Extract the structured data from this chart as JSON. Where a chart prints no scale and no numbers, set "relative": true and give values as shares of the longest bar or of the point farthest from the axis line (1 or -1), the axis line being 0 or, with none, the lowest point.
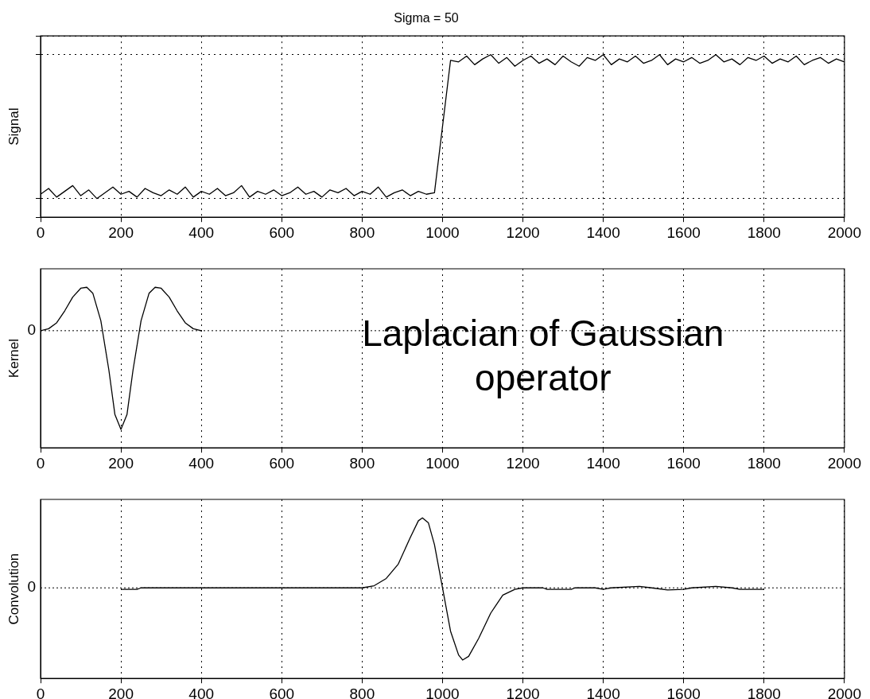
{
  "chart_data": [
    {
      "type": "line",
      "title": "Sigma = 50",
      "ylabel": "Signal",
      "relative": true,
      "tick_labels": "x",
      "grid": true,
      "legend": false,
      "marker": "none",
      "line_style": "solid",
      "color": "#000000",
      "xlim": [
        0,
        2000
      ],
      "xticks": [
        0,
        200,
        400,
        600,
        800,
        1000,
        1200,
        1400,
        1600,
        1800,
        2000
      ],
      "x": [
        0,
        20,
        40,
        60,
        80,
        100,
        120,
        140,
        160,
        180,
        200,
        220,
        240,
        260,
        280,
        300,
        320,
        340,
        360,
        380,
        400,
        420,
        440,
        460,
        480,
        500,
        520,
        540,
        560,
        580,
        600,
        620,
        640,
        660,
        680,
        700,
        720,
        740,
        760,
        780,
        800,
        820,
        840,
        860,
        880,
        900,
        920,
        940,
        960,
        980,
        1020,
        1040,
        1060,
        1080,
        1100,
        1120,
        1140,
        1160,
        1180,
        1200,
        1220,
        1240,
        1260,
        1280,
        1300,
        1320,
        1340,
        1360,
        1380,
        1400,
        1420,
        1440,
        1460,
        1480,
        1500,
        1520,
        1540,
        1560,
        1580,
        1600,
        1620,
        1640,
        1660,
        1680,
        1700,
        1720,
        1740,
        1760,
        1780,
        1800,
        1820,
        1840,
        1860,
        1880,
        1900,
        1920,
        1940,
        1960,
        1980,
        2000
      ],
      "values": [
        0.03,
        0.07,
        0.01,
        0.05,
        0.09,
        0.02,
        0.06,
        0.0,
        0.04,
        0.08,
        0.03,
        0.05,
        0.01,
        0.07,
        0.04,
        0.02,
        0.06,
        0.03,
        0.08,
        0.01,
        0.05,
        0.03,
        0.07,
        0.02,
        0.04,
        0.09,
        0.01,
        0.05,
        0.03,
        0.06,
        0.02,
        0.04,
        0.08,
        0.03,
        0.05,
        0.01,
        0.06,
        0.04,
        0.07,
        0.02,
        0.05,
        0.03,
        0.08,
        0.01,
        0.04,
        0.06,
        0.02,
        0.05,
        0.03,
        0.04,
        0.96,
        0.95,
        0.99,
        0.93,
        0.97,
        1.0,
        0.94,
        0.98,
        0.92,
        0.96,
        0.99,
        0.94,
        0.97,
        0.93,
        0.99,
        0.95,
        0.92,
        0.98,
        0.96,
        1.0,
        0.93,
        0.97,
        0.95,
        0.99,
        0.94,
        0.96,
        1.0,
        0.93,
        0.97,
        0.95,
        0.98,
        0.94,
        0.96,
        1.0,
        0.95,
        0.97,
        0.93,
        0.98,
        0.96,
        0.99,
        0.94,
        0.97,
        0.95,
        0.99,
        0.93,
        0.96,
        0.98,
        0.94,
        0.97,
        0.95
      ]
    },
    {
      "type": "line",
      "ylabel": "Kernel",
      "relative": true,
      "grid": true,
      "legend": false,
      "marker": "none",
      "line_style": "solid",
      "color": "#000000",
      "xlim": [
        0,
        2000
      ],
      "xticks": [
        0,
        200,
        400,
        600,
        800,
        1000,
        1200,
        1400,
        1600,
        1800,
        2000
      ],
      "ref_lines": [
        {
          "axis": "y",
          "value": 0,
          "label": "0"
        }
      ],
      "annotations": [
        "Laplacian of Gaussian operator"
      ],
      "x": [
        0,
        20,
        40,
        60,
        80,
        100,
        115,
        130,
        150,
        170,
        185,
        200,
        215,
        230,
        250,
        270,
        285,
        300,
        320,
        340,
        360,
        380,
        400
      ],
      "values": [
        0,
        0.02,
        0.08,
        0.2,
        0.34,
        0.43,
        0.44,
        0.38,
        0.1,
        -0.4,
        -0.85,
        -1,
        -0.85,
        -0.4,
        0.1,
        0.38,
        0.44,
        0.43,
        0.34,
        0.2,
        0.08,
        0.02,
        0
      ]
    },
    {
      "type": "line",
      "ylabel": "Convolution",
      "relative": true,
      "grid": true,
      "legend": false,
      "marker": "none",
      "line_style": "solid",
      "color": "#000000",
      "xlim": [
        0,
        2000
      ],
      "xticks": [
        0,
        200,
        400,
        600,
        800,
        1000,
        1200,
        1400,
        1600,
        1800,
        2000
      ],
      "ref_lines": [
        {
          "axis": "y",
          "value": 0,
          "label": "0"
        }
      ],
      "x": [
        200,
        240,
        250,
        800,
        830,
        860,
        890,
        920,
        940,
        950,
        965,
        980,
        1000,
        1020,
        1040,
        1050,
        1065,
        1090,
        1120,
        1150,
        1180,
        1200,
        1250,
        1260,
        1320,
        1330,
        1380,
        1400,
        1420,
        1490,
        1520,
        1560,
        1600,
        1620,
        1680,
        1720,
        1740,
        1800
      ],
      "values": [
        -0.02,
        -0.02,
        0,
        0,
        0.03,
        0.13,
        0.33,
        0.7,
        0.93,
        0.97,
        0.9,
        0.6,
        0,
        -0.6,
        -0.93,
        -1,
        -0.95,
        -0.7,
        -0.35,
        -0.1,
        -0.02,
        0,
        0,
        -0.02,
        -0.02,
        0,
        0,
        -0.02,
        0,
        0.02,
        0,
        -0.03,
        -0.02,
        0,
        0.02,
        0,
        -0.02,
        -0.02
      ]
    }
  ]
}
